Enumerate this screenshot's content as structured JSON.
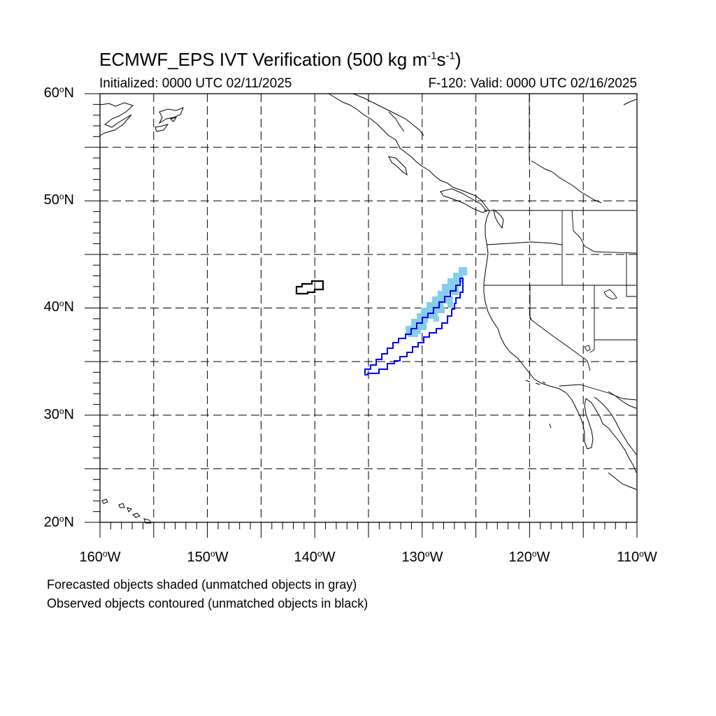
{
  "title": {
    "base": "ECMWF_EPS IVT Verification (500 kg m",
    "exp1": "-1",
    "mid": "s",
    "exp2": "-1",
    "end": ")"
  },
  "initialized": "Initialized: 0000 UTC 02/11/2025",
  "valid": "F-120: Valid: 0000 UTC 02/16/2025",
  "lat_labels": [
    {
      "value": 60,
      "text": "60",
      "suffix": "N"
    },
    {
      "value": 50,
      "text": "50",
      "suffix": "N"
    },
    {
      "value": 40,
      "text": "40",
      "suffix": "N"
    },
    {
      "value": 30,
      "text": "30",
      "suffix": "N"
    },
    {
      "value": 20,
      "text": "20",
      "suffix": "N"
    }
  ],
  "lon_labels": [
    {
      "value": -160,
      "text": "160",
      "suffix": "W"
    },
    {
      "value": -150,
      "text": "150",
      "suffix": "W"
    },
    {
      "value": -140,
      "text": "140",
      "suffix": "W"
    },
    {
      "value": -130,
      "text": "130",
      "suffix": "W"
    },
    {
      "value": -120,
      "text": "120",
      "suffix": "W"
    },
    {
      "value": -110,
      "text": "110",
      "suffix": "W"
    }
  ],
  "legend": {
    "forecast": "Forecasted objects shaded (unmatched objects in gray)",
    "observed": "Observed objects contoured (unmatched objects in black)"
  },
  "map": {
    "lon_range": [
      -160,
      -110
    ],
    "lat_range": [
      20,
      60
    ],
    "grid_step_deg": 5,
    "colors": {
      "forecast_fill": "#87ceeb",
      "matched_contour": "#0000ff",
      "unmatched_contour": "#000000",
      "coastline": "#000000",
      "grid": "#000000"
    }
  }
}
